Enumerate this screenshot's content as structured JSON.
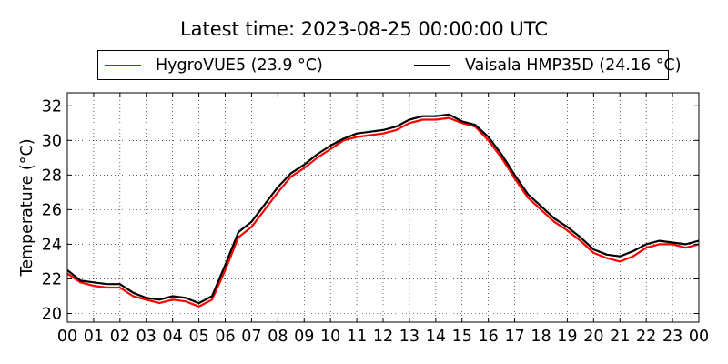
{
  "chart_data": {
    "type": "line",
    "title": "Latest time: 2023-08-25 00:00:00 UTC",
    "ylabel": "Temperature (°C)",
    "xlabel": "",
    "xlim": [
      0,
      24
    ],
    "ylim": [
      19.5,
      32.75
    ],
    "x_ticks": [
      "00",
      "01",
      "02",
      "03",
      "04",
      "05",
      "06",
      "07",
      "08",
      "09",
      "10",
      "11",
      "12",
      "13",
      "14",
      "15",
      "16",
      "17",
      "18",
      "19",
      "20",
      "21",
      "22",
      "23",
      "00"
    ],
    "y_ticks": [
      20,
      22,
      24,
      26,
      28,
      30,
      32
    ],
    "grid": true,
    "legend_position": "top",
    "series": [
      {
        "name": "HygroVUE5 (23.9 °C)",
        "color": "#ff0000",
        "x": [
          0,
          0.5,
          1,
          1.5,
          2,
          2.5,
          3,
          3.5,
          4,
          4.5,
          5,
          5.5,
          6,
          6.5,
          7,
          7.5,
          8,
          8.5,
          9,
          9.5,
          10,
          10.5,
          11,
          11.5,
          12,
          12.5,
          13,
          13.5,
          14,
          14.5,
          15,
          15.5,
          16,
          16.5,
          17,
          17.5,
          18,
          18.5,
          19,
          19.5,
          20,
          20.5,
          21,
          21.5,
          22,
          22.5,
          23,
          23.5,
          24
        ],
        "y": [
          22.3,
          21.8,
          21.6,
          21.5,
          21.5,
          21.0,
          20.8,
          20.6,
          20.8,
          20.7,
          20.4,
          20.8,
          22.5,
          24.4,
          25.0,
          26.0,
          27.0,
          27.9,
          28.4,
          29.0,
          29.5,
          30.0,
          30.2,
          30.3,
          30.4,
          30.6,
          31.0,
          31.2,
          31.2,
          31.3,
          31.0,
          30.8,
          30.0,
          29.0,
          27.8,
          26.7,
          26.0,
          25.3,
          24.8,
          24.2,
          23.5,
          23.2,
          23.0,
          23.3,
          23.8,
          24.0,
          24.0,
          23.8,
          24.0
        ]
      },
      {
        "name": "Vaisala HMP35D (24.16 °C)",
        "color": "#000000",
        "x": [
          0,
          0.5,
          1,
          1.5,
          2,
          2.5,
          3,
          3.5,
          4,
          4.5,
          5,
          5.5,
          6,
          6.5,
          7,
          7.5,
          8,
          8.5,
          9,
          9.5,
          10,
          10.5,
          11,
          11.5,
          12,
          12.5,
          13,
          13.5,
          14,
          14.5,
          15,
          15.5,
          16,
          16.5,
          17,
          17.5,
          18,
          18.5,
          19,
          19.5,
          20,
          20.5,
          21,
          21.5,
          22,
          22.5,
          23,
          23.5,
          24
        ],
        "y": [
          22.5,
          21.9,
          21.8,
          21.7,
          21.7,
          21.2,
          20.9,
          20.8,
          21.0,
          20.9,
          20.6,
          21.0,
          22.8,
          24.7,
          25.3,
          26.3,
          27.3,
          28.1,
          28.6,
          29.2,
          29.7,
          30.1,
          30.4,
          30.5,
          30.6,
          30.8,
          31.2,
          31.4,
          31.4,
          31.5,
          31.1,
          30.9,
          30.2,
          29.2,
          28.0,
          26.9,
          26.2,
          25.5,
          25.0,
          24.4,
          23.7,
          23.4,
          23.3,
          23.6,
          24.0,
          24.2,
          24.1,
          24.0,
          24.2
        ]
      }
    ]
  }
}
